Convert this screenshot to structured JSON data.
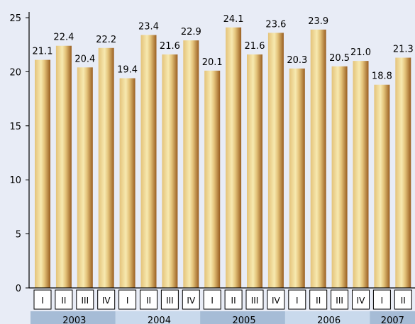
{
  "chart_data": {
    "type": "bar",
    "title": "",
    "xlabel": "",
    "ylabel": "",
    "ylim": [
      0,
      25
    ],
    "yticks": [
      0,
      5,
      10,
      15,
      20,
      25
    ],
    "grid": false,
    "legend": "none",
    "categories": [
      "I",
      "II",
      "III",
      "IV",
      "I",
      "II",
      "III",
      "IV",
      "I",
      "II",
      "III",
      "IV",
      "I",
      "II",
      "III",
      "IV",
      "I",
      "II"
    ],
    "values": [
      21.1,
      22.4,
      20.4,
      22.2,
      19.4,
      23.4,
      21.6,
      22.9,
      20.1,
      24.1,
      21.6,
      23.6,
      20.3,
      23.9,
      20.5,
      21.0,
      18.8,
      21.3
    ],
    "value_labels": [
      "21.1",
      "22.4",
      "20.4",
      "22.2",
      "19.4",
      "23.4",
      "21.6",
      "22.9",
      "20.1",
      "24.1",
      "21.6",
      "23.6",
      "20.3",
      "23.9",
      "20.5",
      "21.0",
      "18.8",
      "21.3"
    ],
    "groups": [
      {
        "label": "2003",
        "count": 4
      },
      {
        "label": "2004",
        "count": 4
      },
      {
        "label": "2005",
        "count": 4
      },
      {
        "label": "2006",
        "count": 4
      },
      {
        "label": "2007",
        "count": 2
      }
    ],
    "colors": {
      "background": "#e8ecf6",
      "bar_dark": "#9a5f21",
      "bar_mid": "#e4c37a",
      "bar_light": "#f7e9b0",
      "year_band_dark": "#a6bcd6",
      "year_band_light": "#c9d9ec"
    }
  }
}
